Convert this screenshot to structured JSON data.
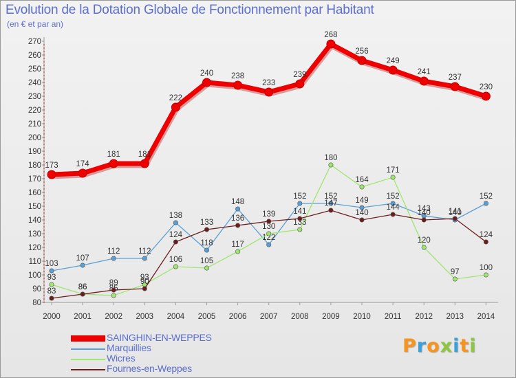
{
  "header": {
    "title": "Evolution de la Dotation Globale de Fonctionnement par Habitant",
    "subtitle": "(en € et par an)"
  },
  "logo": {
    "text": "Proxiti",
    "colors": [
      "#f7941d",
      "#3aa0d8",
      "#f7941d",
      "#8dc63f",
      "#3aa0d8",
      "#f7941d",
      "#8dc63f"
    ]
  },
  "chart_data": {
    "type": "line",
    "title": "Evolution de la Dotation Globale de Fonctionnement par Habitant",
    "subtitle": "(en € et par an)",
    "xlabel": "",
    "ylabel": "",
    "ylim": [
      80,
      270
    ],
    "y_ticks": [
      80,
      90,
      100,
      110,
      120,
      130,
      140,
      150,
      160,
      170,
      180,
      190,
      200,
      210,
      220,
      230,
      240,
      250,
      260,
      270
    ],
    "grid": false,
    "legend_position": "bottom-left",
    "categories": [
      "2000",
      "2001",
      "2002",
      "2003",
      "2004",
      "2005",
      "2006",
      "2007",
      "2008",
      "2009",
      "2010",
      "2011",
      "2012",
      "2013",
      "2014"
    ],
    "series": [
      {
        "name": "SAINGHIN-EN-WEPPES",
        "color": "#ee0000",
        "emphasis": true,
        "values": [
          173,
          174,
          181,
          181,
          222,
          240,
          238,
          233,
          239,
          268,
          256,
          249,
          241,
          237,
          230
        ]
      },
      {
        "name": "Marquillies",
        "color": "#5a9fd4",
        "values": [
          103,
          107,
          112,
          112,
          138,
          118,
          148,
          122,
          152,
          152,
          149,
          152,
          143,
          140,
          152
        ]
      },
      {
        "name": "Wicres",
        "color": "#9ee66e",
        "values": [
          93,
          86,
          85,
          93,
          106,
          105,
          117,
          130,
          133,
          180,
          164,
          171,
          120,
          97,
          100
        ]
      },
      {
        "name": "Fournes-en-Weppes",
        "color": "#6b1c1c",
        "values": [
          83,
          86,
          89,
          90,
          124,
          133,
          136,
          139,
          141,
          147,
          140,
          144,
          140,
          141,
          124
        ]
      }
    ]
  }
}
